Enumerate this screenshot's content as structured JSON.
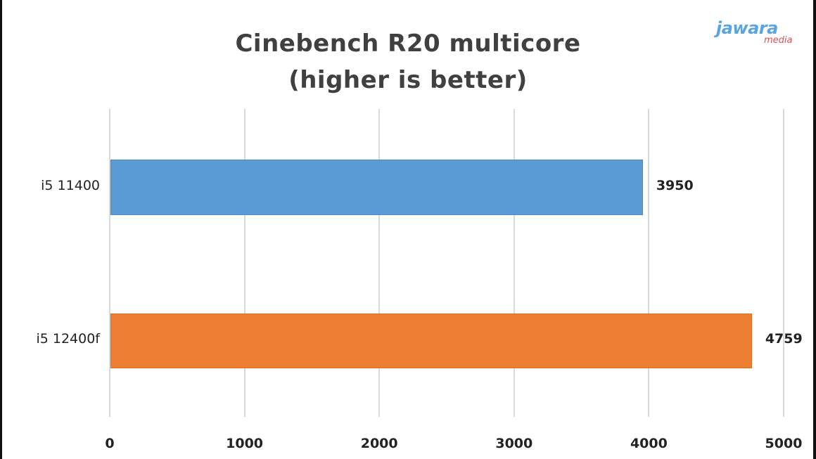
{
  "chart_data": {
    "type": "bar",
    "orientation": "horizontal",
    "title": "Cinebench R20 multicore",
    "subtitle": "(higher is better)",
    "categories": [
      "i5 11400",
      "i5 12400f"
    ],
    "values": [
      3950,
      4759
    ],
    "colors": [
      "#5b9bd5",
      "#ed7d31"
    ],
    "data_labels": [
      "3950",
      "4759"
    ],
    "xlabel": "",
    "ylabel": "",
    "xlim": [
      0,
      5000
    ],
    "x_ticks": [
      "0",
      "1000",
      "2000",
      "3000",
      "4000",
      "5000"
    ],
    "grid": true,
    "legend": null
  },
  "watermark": {
    "line1": "jawara",
    "line2": "media",
    "color1": "#5aa5e0",
    "color2": "#e05050"
  }
}
